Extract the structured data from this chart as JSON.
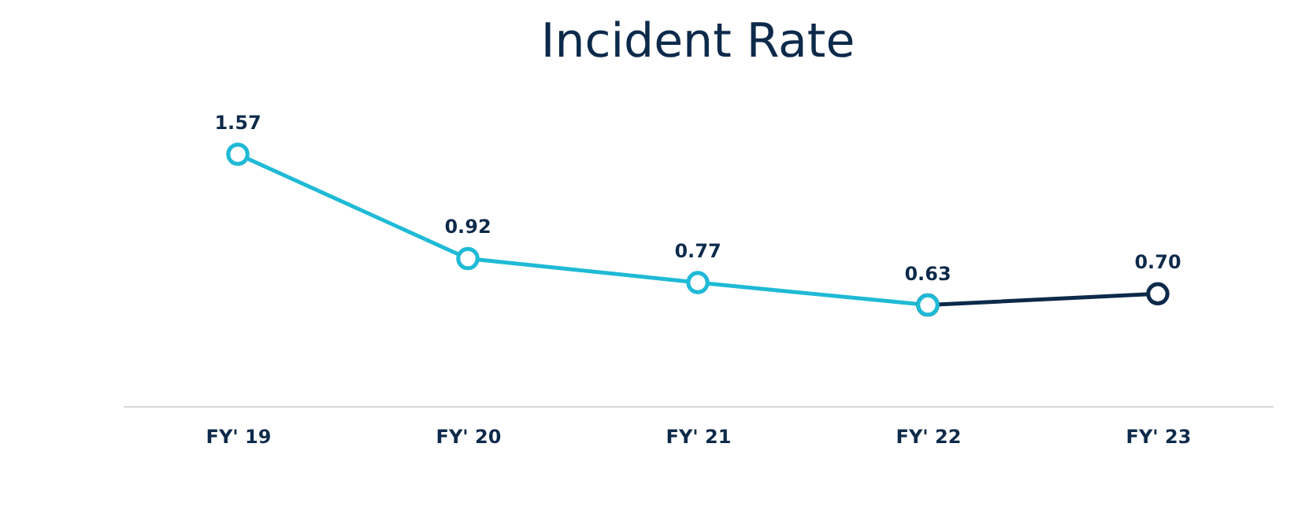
{
  "chart_data": {
    "type": "line",
    "title": "Incident Rate",
    "categories": [
      "FY' 19",
      "FY' 20",
      "FY' 21",
      "FY' 22",
      "FY' 23"
    ],
    "series": [
      {
        "color": "#1fbad6",
        "values": [
          1.57,
          0.92,
          0.77,
          0.63,
          null
        ],
        "value_labels": [
          "1.57",
          "0.92",
          "0.77",
          "0.63",
          null
        ]
      },
      {
        "color": "#0d2a4a",
        "values": [
          null,
          null,
          null,
          0.63,
          0.7
        ],
        "value_labels": [
          null,
          null,
          null,
          null,
          "0.70"
        ]
      }
    ],
    "marker": "circle",
    "line_style": "solid",
    "grid": false,
    "tick_labels": "x"
  }
}
